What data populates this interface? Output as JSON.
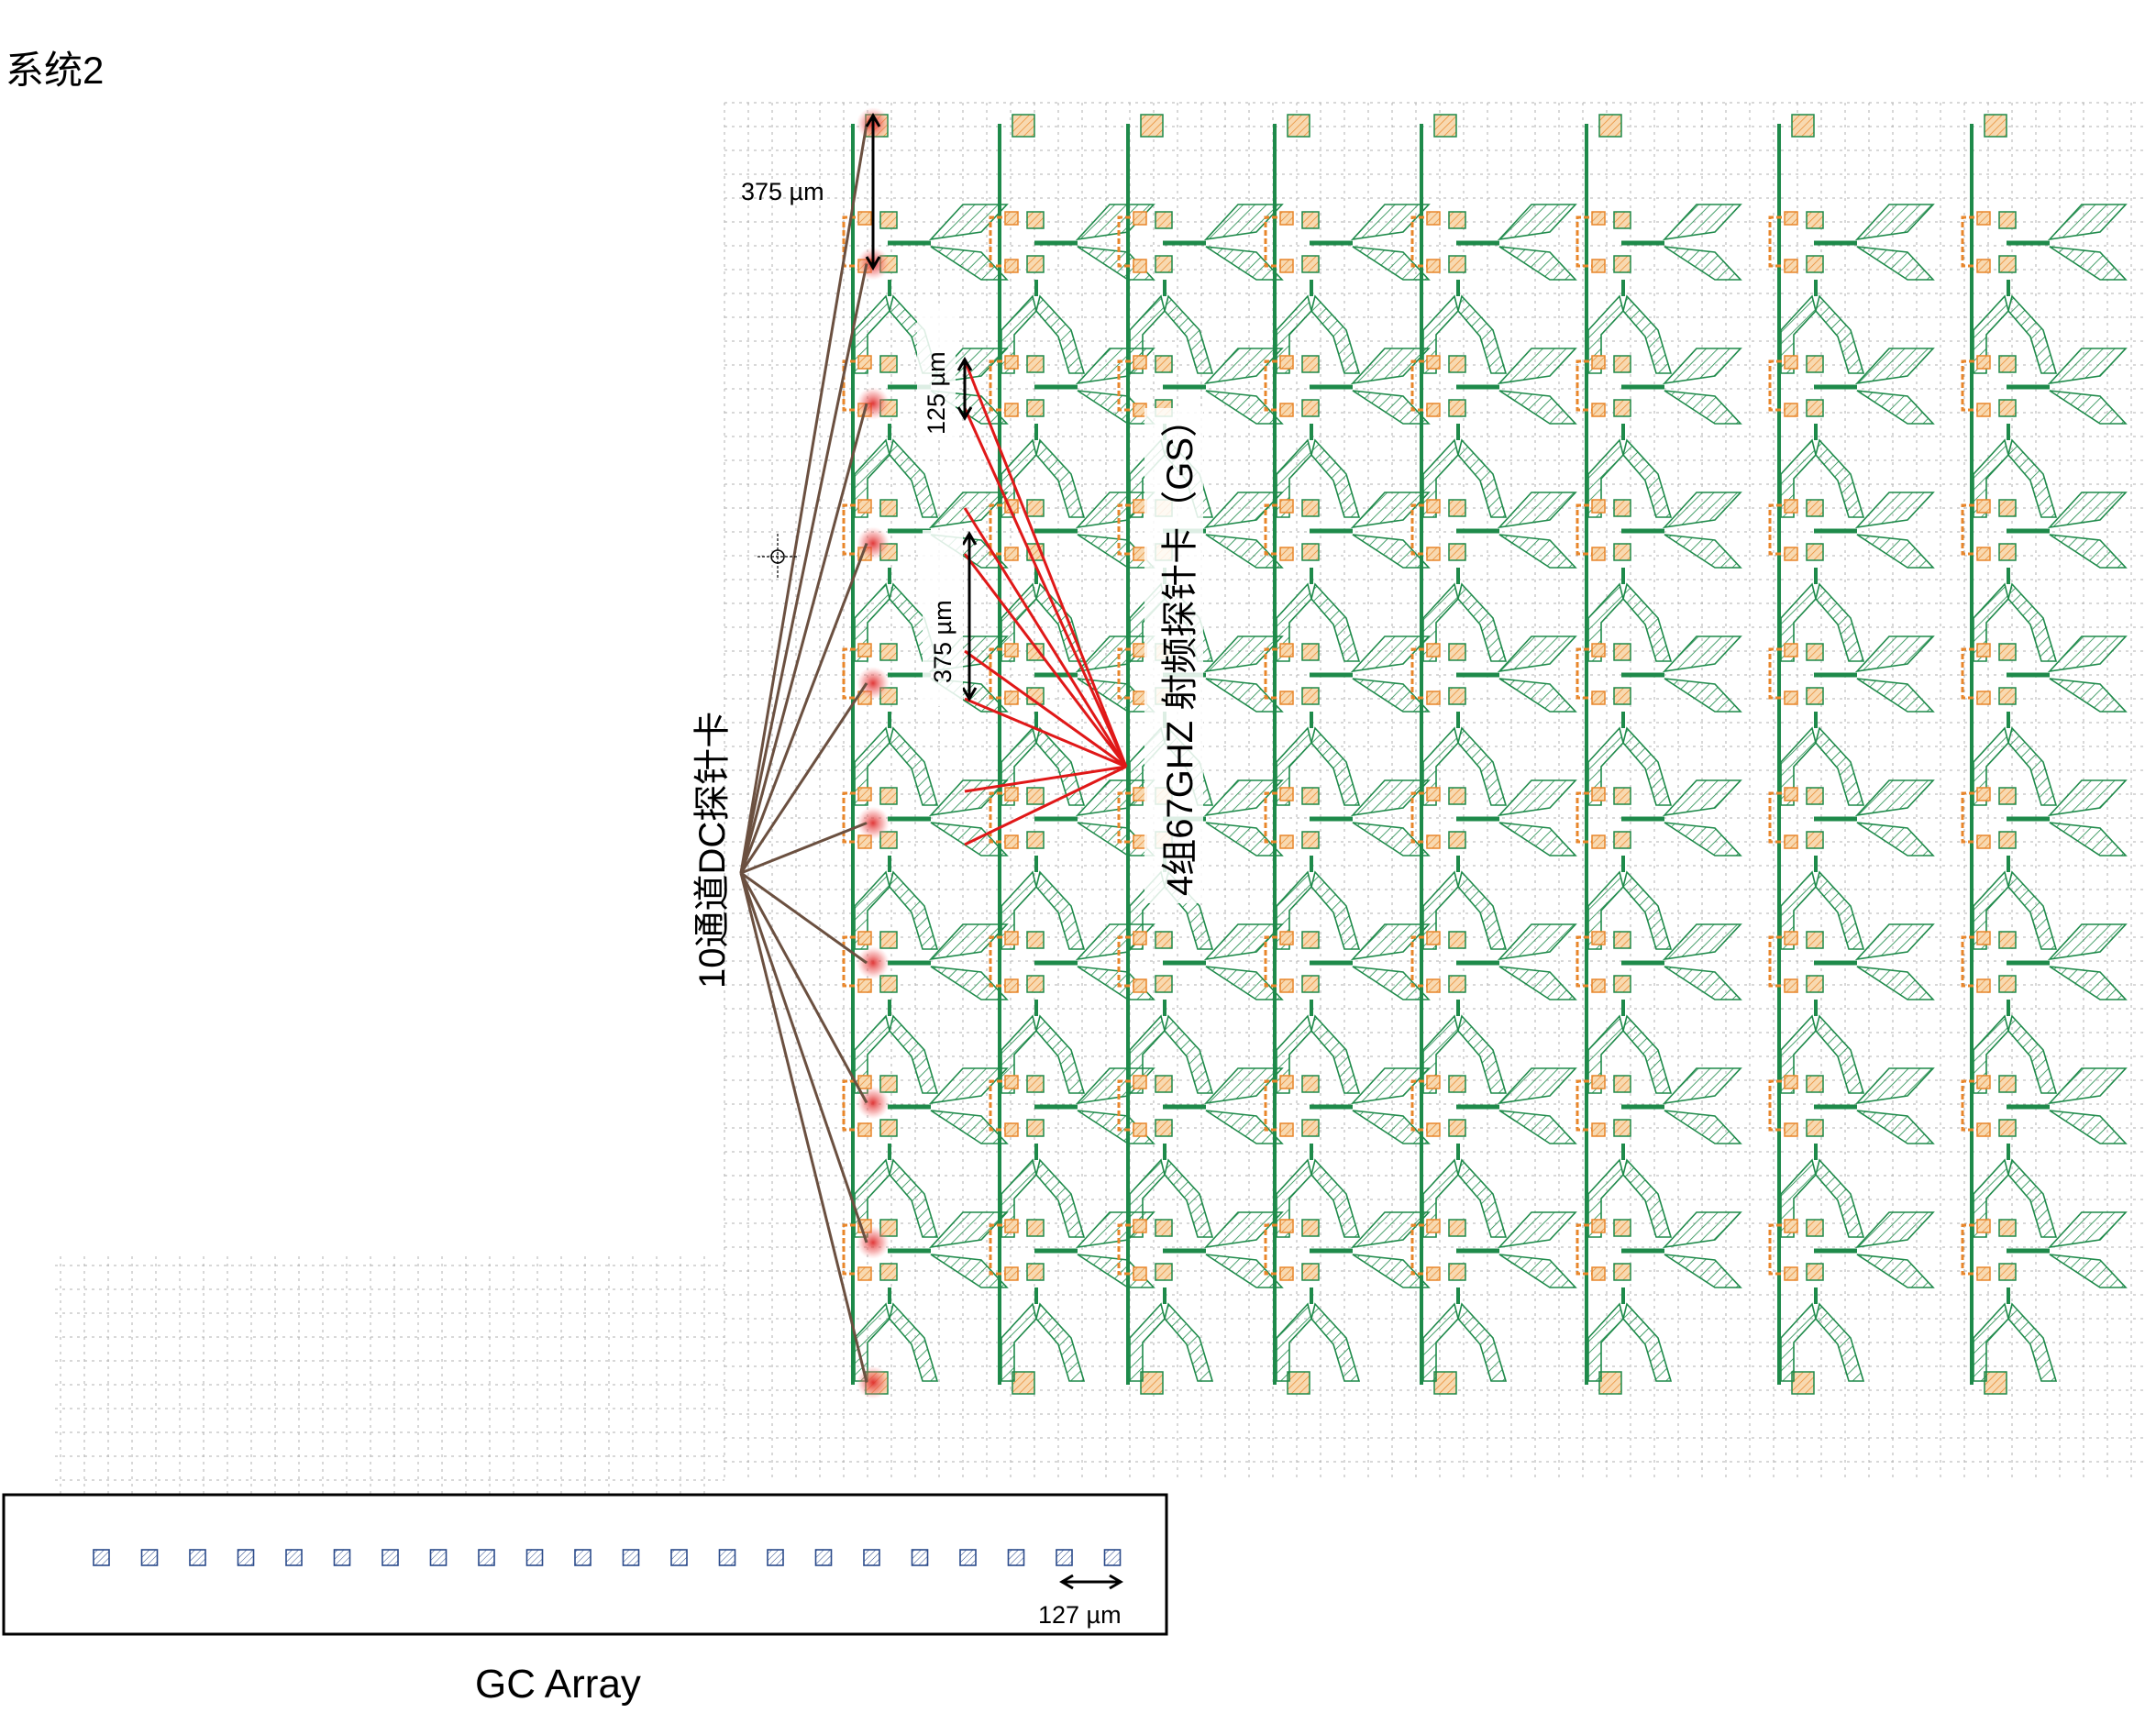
{
  "title": "系统2",
  "labels": {
    "dc_probe": "10通道DC探针卡",
    "rf_probe": "4组67GHZ 射频探针卡（GS）",
    "gc_array": "GC Array",
    "dim_375_top": "375 µm",
    "dim_125": "125 µm",
    "dim_375_mid": "375 µm",
    "dim_127": "127 µm"
  },
  "layout": {
    "columns": 8,
    "cells_per_column": 8,
    "dc_channels": 10,
    "rf_groups": 4,
    "gc_couplers": 22
  },
  "colors": {
    "waveguide": "#1e8a4a",
    "heater": "#e8862a",
    "pad_fill": "#f4c08a",
    "dc_line": "#6b5040",
    "rf_line": "#e01818",
    "grid": "#b0b0b0",
    "gc": "#2a4a8a"
  }
}
